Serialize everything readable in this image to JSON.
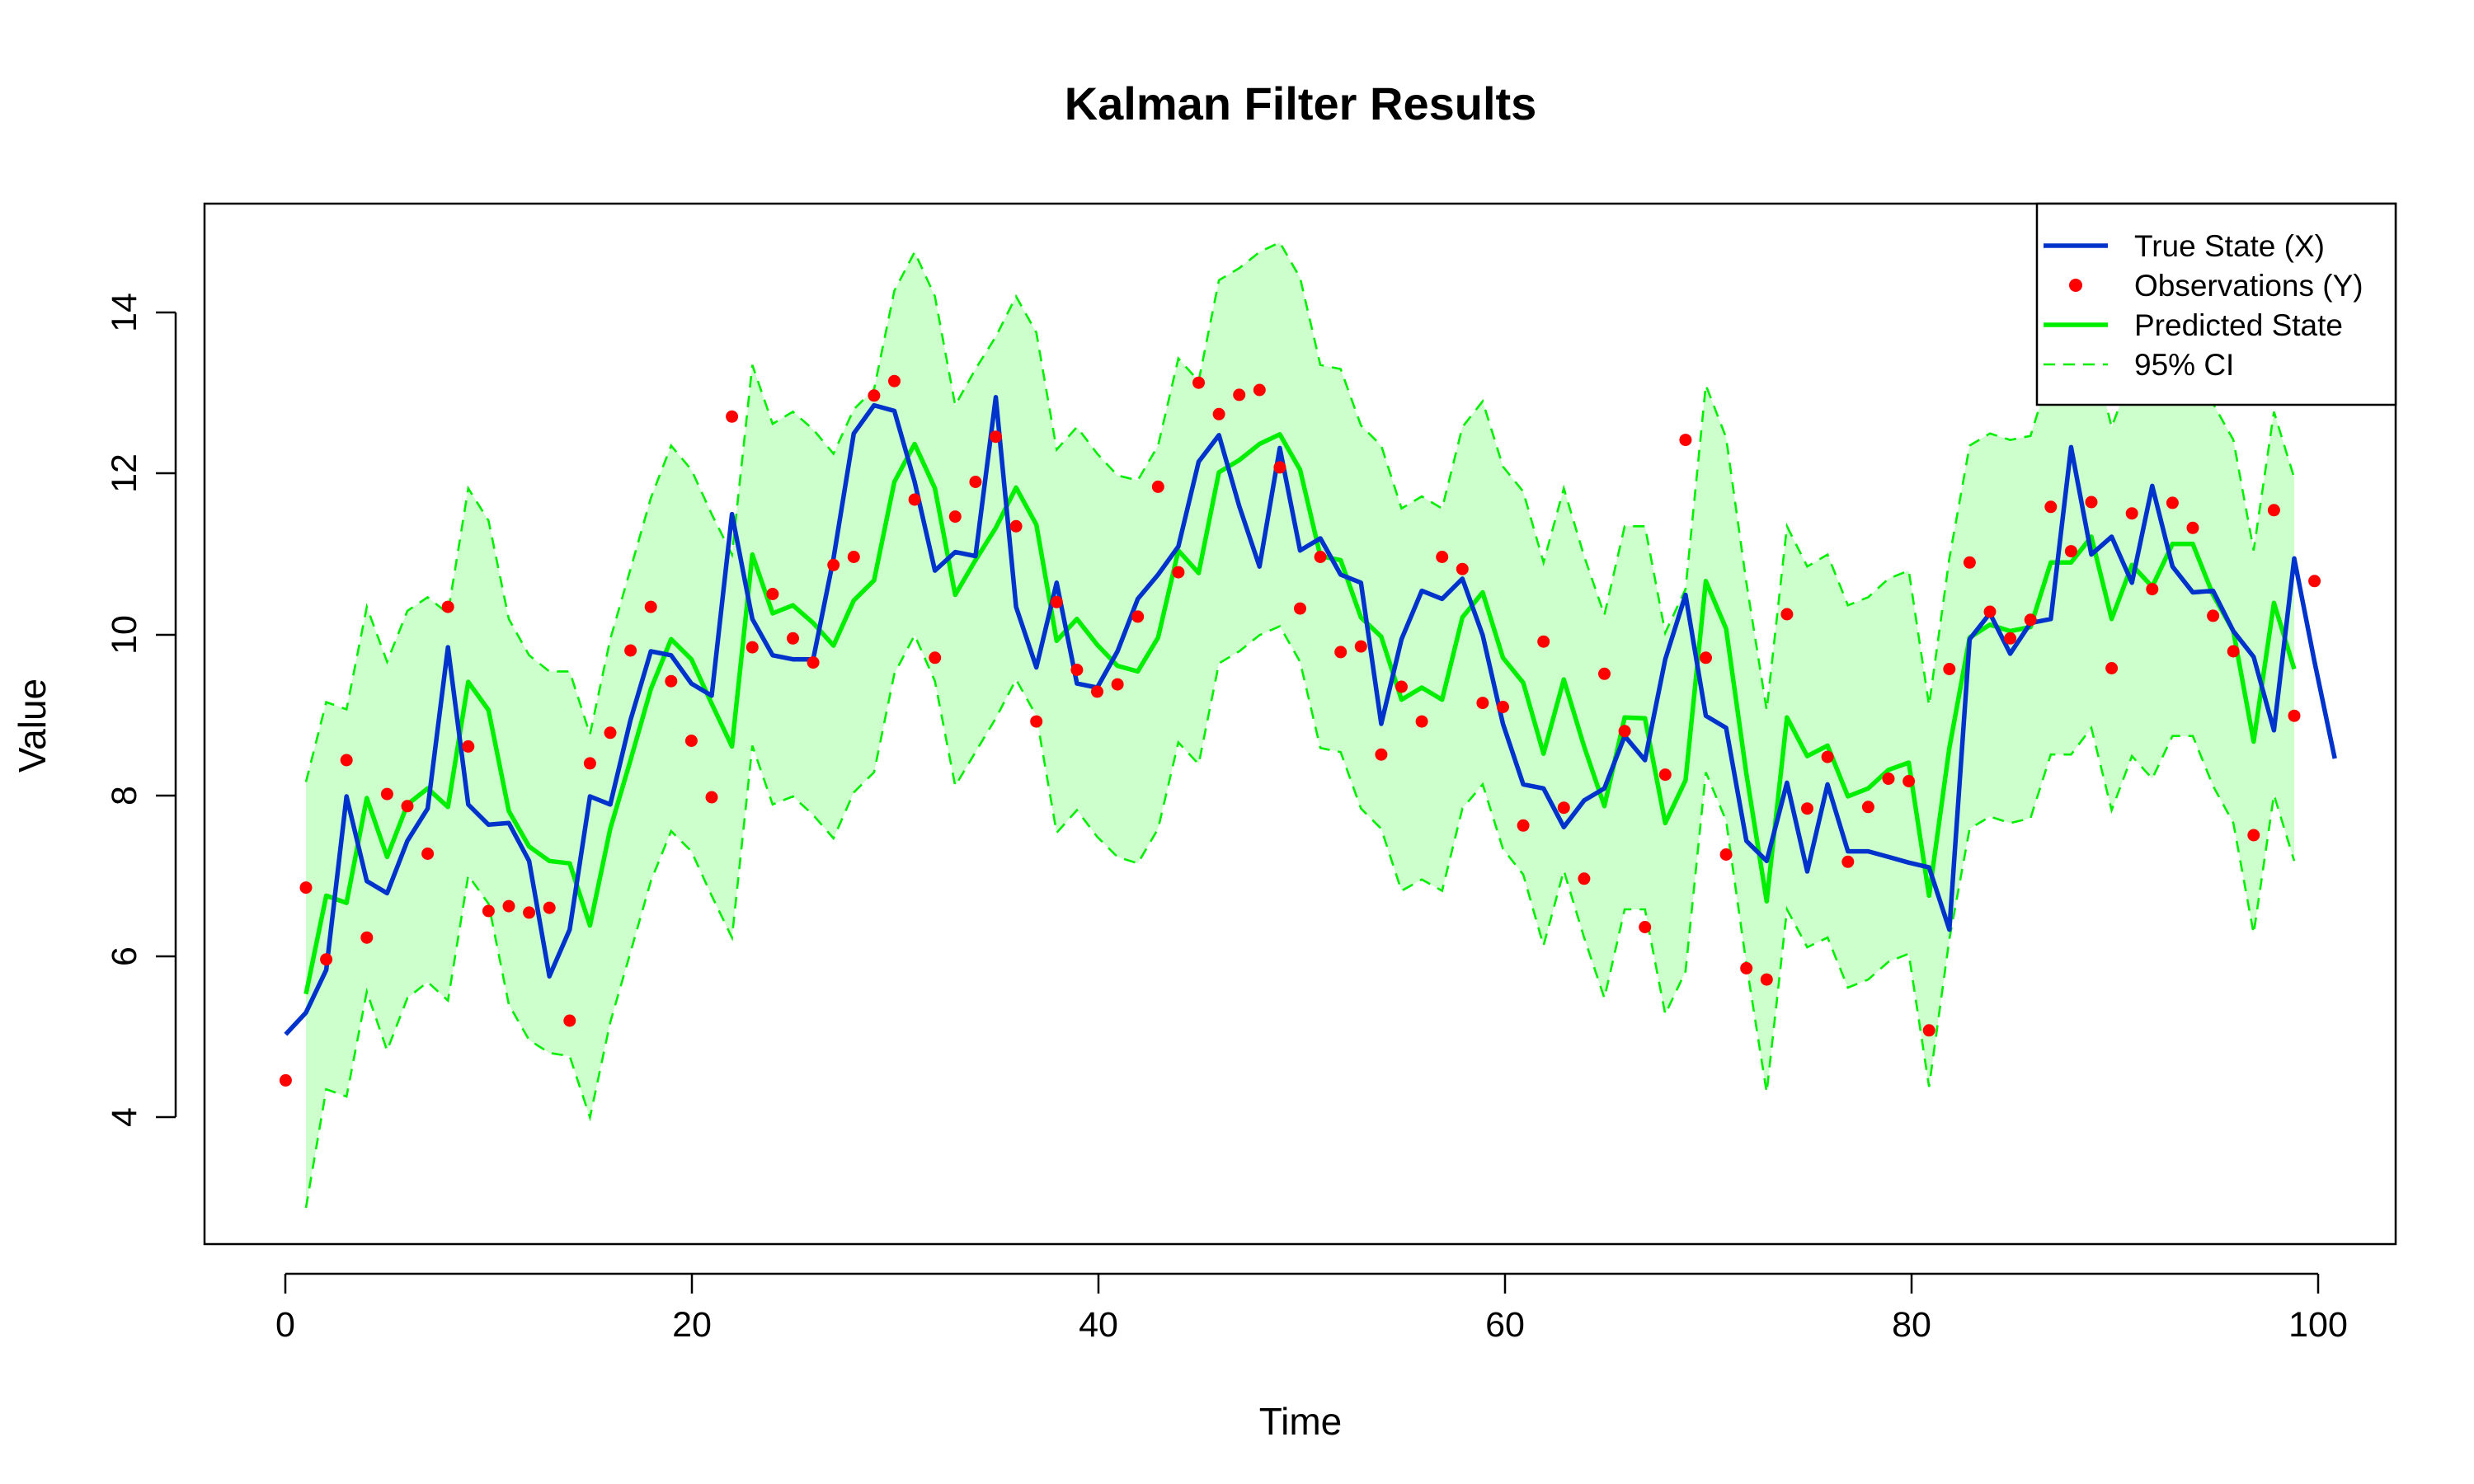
{
  "chart_data": {
    "type": "line",
    "title": "Kalman Filter Results",
    "xlabel": "Time",
    "ylabel": "Value",
    "xlim": [
      -4,
      104
    ],
    "ylim": [
      2.4,
      15.3
    ],
    "x_ticks": [
      "0",
      "20",
      "40",
      "60",
      "80",
      "100"
    ],
    "y_ticks": [
      "4",
      "6",
      "8",
      "10",
      "12",
      "14"
    ],
    "grid": false,
    "legend_position": "top-right",
    "colors": {
      "true_state": "#0033cc",
      "observations": "#ff0000",
      "predicted": "#00ee00",
      "ci_line": "#00ee00",
      "ci_fill": "#ccffcc"
    },
    "series": [
      {
        "name": "True State (X)",
        "kind": "line",
        "x_start": 0,
        "values": [
          5.0,
          5.27,
          5.8,
          7.95,
          6.9,
          6.75,
          7.4,
          7.8,
          9.8,
          7.85,
          7.6,
          7.62,
          7.15,
          5.72,
          6.3,
          7.95,
          7.85,
          8.9,
          9.75,
          9.7,
          9.35,
          9.2,
          11.45,
          10.15,
          9.7,
          9.65,
          9.65,
          10.9,
          12.45,
          12.8,
          12.73,
          11.85,
          10.75,
          10.98,
          10.93,
          12.9,
          10.3,
          9.55,
          10.6,
          9.35,
          9.3,
          9.75,
          10.4,
          10.7,
          11.05,
          12.1,
          12.43,
          11.55,
          10.8,
          12.27,
          11.0,
          11.15,
          10.7,
          10.6,
          8.85,
          9.9,
          10.5,
          10.4,
          10.65,
          9.95,
          8.85,
          8.1,
          8.05,
          7.57,
          7.9,
          8.05,
          8.7,
          8.4,
          9.65,
          10.45,
          8.95,
          8.8,
          7.4,
          7.15,
          8.12,
          7.02,
          8.1,
          7.27,
          7.27,
          7.2,
          7.13,
          7.07,
          6.3,
          9.9,
          10.22,
          9.72,
          10.1,
          10.15,
          12.28,
          10.95,
          11.17,
          10.6,
          11.8,
          10.8,
          10.48,
          10.5,
          10.0,
          9.68,
          8.77,
          10.9,
          9.62,
          8.42
        ]
      },
      {
        "name": "Observations (Y)",
        "kind": "points",
        "x_start": 0,
        "values": [
          4.43,
          6.82,
          5.93,
          8.4,
          6.2,
          7.98,
          7.83,
          7.24,
          10.3,
          8.57,
          6.53,
          6.59,
          6.51,
          6.57,
          5.17,
          8.36,
          8.74,
          9.76,
          10.3,
          9.38,
          8.64,
          7.94,
          12.66,
          9.8,
          10.46,
          9.91,
          9.61,
          10.82,
          10.92,
          12.92,
          13.1,
          11.63,
          9.67,
          11.42,
          11.85,
          12.41,
          11.3,
          8.88,
          10.36,
          9.52,
          9.25,
          9.34,
          10.18,
          11.79,
          10.73,
          13.08,
          12.69,
          12.93,
          12.99,
          12.03,
          10.28,
          10.92,
          9.74,
          9.81,
          8.47,
          9.31,
          8.88,
          10.92,
          10.77,
          9.11,
          9.06,
          7.59,
          9.87,
          7.81,
          6.93,
          9.47,
          8.76,
          6.33,
          8.22,
          12.37,
          9.67,
          7.23,
          5.82,
          5.68,
          10.21,
          7.8,
          8.44,
          7.14,
          7.82,
          8.17,
          8.14,
          5.05,
          9.53,
          10.85,
          10.24,
          9.91,
          10.14,
          11.54,
          10.99,
          11.6,
          9.54,
          11.46,
          10.52,
          11.59,
          11.28,
          10.19,
          9.75,
          7.47,
          11.5,
          8.95,
          10.62
        ]
      },
      {
        "name": "Predicted State",
        "kind": "line",
        "x_start": 1,
        "values": [
          5.5,
          6.72,
          6.63,
          7.93,
          7.2,
          7.85,
          8.05,
          7.82,
          9.37,
          9.02,
          7.77,
          7.33,
          7.15,
          7.12,
          6.35,
          7.55,
          8.4,
          9.28,
          9.9,
          9.65,
          9.1,
          8.57,
          10.95,
          10.22,
          10.32,
          10.1,
          9.82,
          10.38,
          10.63,
          11.85,
          12.32,
          11.77,
          10.45,
          10.88,
          11.28,
          11.78,
          11.32,
          9.88,
          10.15,
          9.83,
          9.57,
          9.5,
          9.92,
          11.0,
          10.72,
          11.97,
          12.12,
          12.32,
          12.44,
          12.0,
          10.93,
          10.88,
          10.17,
          9.93,
          9.15,
          9.3,
          9.15,
          10.17,
          10.48,
          9.67,
          9.36,
          8.48,
          9.4,
          8.57,
          7.83,
          8.93,
          8.92,
          7.62,
          8.15,
          10.62,
          10.03,
          8.23,
          6.65,
          8.93,
          8.45,
          8.58,
          7.95,
          8.05,
          8.28,
          8.37,
          6.72,
          8.55,
          9.92,
          10.08,
          10.0,
          10.05,
          10.85,
          10.85,
          11.17,
          10.15,
          10.82,
          10.55,
          11.08,
          11.08,
          10.45,
          10.0,
          8.63,
          10.35,
          9.53
        ]
      },
      {
        "name": "95% CI",
        "kind": "band",
        "x_start": 1,
        "upper": [
          8.13,
          9.12,
          9.03,
          10.3,
          9.62,
          10.25,
          10.42,
          10.22,
          11.77,
          11.37,
          10.15,
          9.7,
          9.5,
          9.5,
          8.72,
          9.9,
          10.77,
          11.65,
          12.3,
          12.0,
          11.45,
          10.95,
          13.3,
          12.57,
          12.72,
          12.5,
          12.2,
          12.75,
          13.0,
          14.22,
          14.7,
          14.15,
          12.8,
          13.25,
          13.65,
          14.15,
          13.7,
          12.25,
          12.53,
          12.2,
          11.93,
          11.87,
          12.3,
          13.38,
          13.1,
          14.35,
          14.5,
          14.7,
          14.82,
          14.38,
          13.3,
          13.25,
          12.55,
          12.3,
          11.52,
          11.67,
          11.52,
          12.53,
          12.85,
          12.04,
          11.73,
          10.85,
          11.77,
          10.93,
          10.2,
          11.3,
          11.3,
          9.98,
          10.52,
          13.05,
          12.4,
          10.6,
          9.02,
          11.3,
          10.8,
          10.95,
          10.32,
          10.42,
          10.65,
          10.75,
          9.08,
          10.9,
          12.3,
          12.45,
          12.37,
          12.42,
          13.23,
          13.23,
          13.55,
          12.53,
          13.2,
          12.92,
          13.45,
          13.45,
          12.82,
          12.37,
          11.0,
          12.72,
          11.9
        ],
        "lower": [
          2.85,
          4.32,
          4.23,
          5.53,
          4.8,
          5.45,
          5.65,
          5.42,
          6.97,
          6.62,
          5.37,
          4.93,
          4.77,
          4.73,
          3.97,
          5.15,
          6.02,
          6.9,
          7.52,
          7.27,
          6.72,
          6.2,
          8.58,
          7.85,
          7.95,
          7.72,
          7.43,
          8.0,
          8.25,
          9.47,
          9.95,
          9.38,
          8.08,
          8.5,
          8.92,
          9.4,
          8.95,
          7.5,
          7.78,
          7.45,
          7.2,
          7.12,
          7.55,
          8.62,
          8.35,
          9.6,
          9.75,
          9.95,
          10.06,
          9.62,
          8.55,
          8.5,
          7.8,
          7.55,
          6.78,
          6.92,
          6.78,
          7.8,
          8.1,
          7.3,
          6.98,
          6.1,
          7.03,
          6.2,
          5.45,
          6.55,
          6.55,
          5.25,
          5.78,
          8.25,
          7.65,
          5.87,
          4.28,
          6.55,
          6.08,
          6.2,
          5.58,
          5.68,
          5.9,
          6.0,
          4.35,
          6.18,
          7.55,
          7.7,
          7.62,
          7.68,
          8.47,
          8.47,
          8.8,
          7.78,
          8.45,
          8.17,
          8.7,
          8.7,
          8.08,
          7.62,
          6.25,
          7.97,
          7.15
        ]
      }
    ]
  }
}
